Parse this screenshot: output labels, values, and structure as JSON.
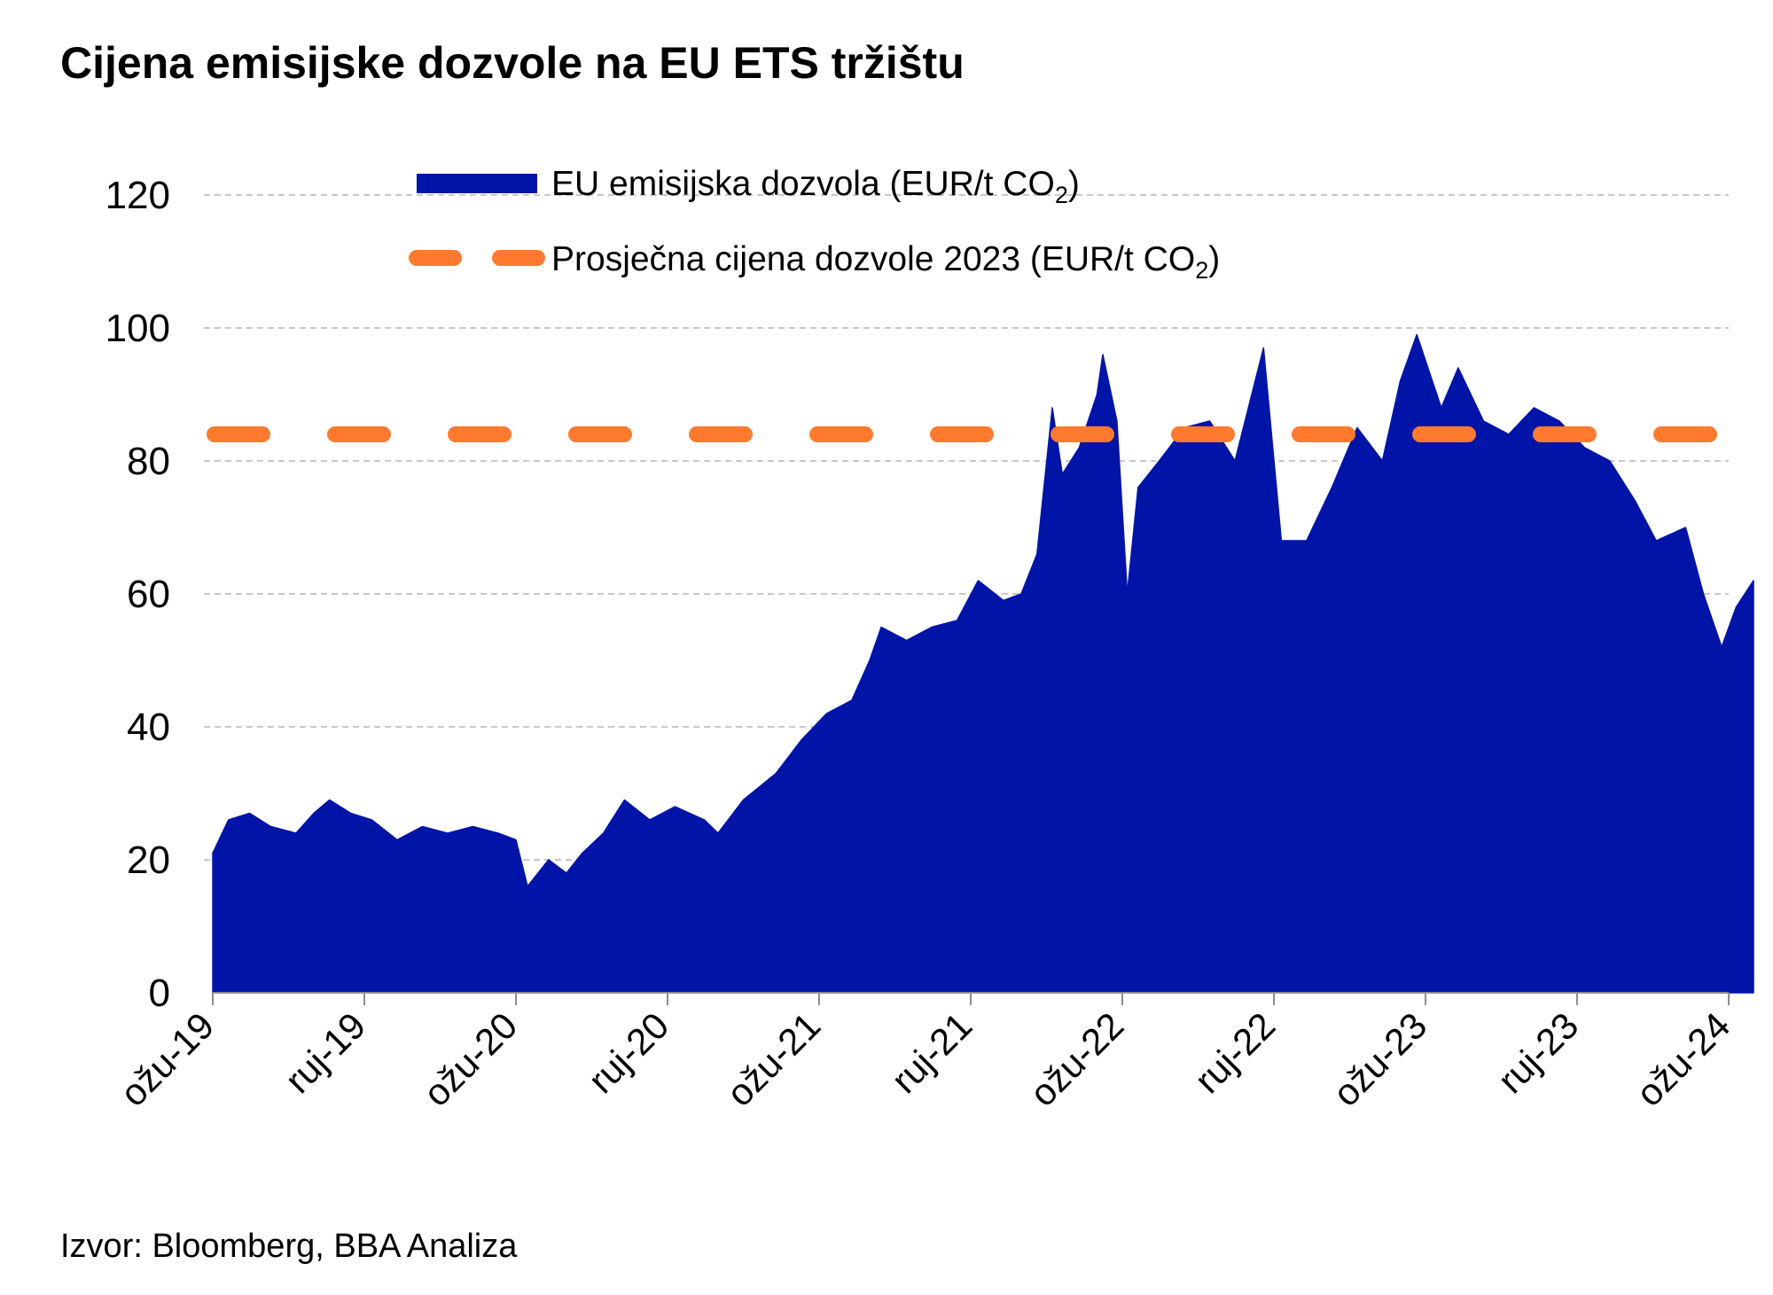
{
  "chart_data": {
    "type": "area",
    "title": "Cijena emisijske dozvole na EU ETS tržištu",
    "source": "Izvor: Bloomberg, BBA Analiza",
    "xlabel": "",
    "ylabel": "",
    "ylim": [
      0,
      120
    ],
    "y_ticks": [
      0,
      20,
      40,
      60,
      80,
      100,
      120
    ],
    "x_range": [
      "2019-03",
      "2024-03"
    ],
    "x_tick_labels": [
      "ožu-19",
      "ruj-19",
      "ožu-20",
      "ruj-20",
      "ožu-21",
      "ruj-21",
      "ožu-22",
      "ruj-22",
      "ožu-23",
      "ruj-23",
      "ožu-24"
    ],
    "grid": true,
    "legend_placement": "top",
    "colors": {
      "area": "#0014A8",
      "average": "#FF7A2E",
      "grid": "#C8C8C8"
    },
    "series": [
      {
        "name": "EU emisijska dozvola (EUR/t CO",
        "name_sub": "2",
        "name_suffix": ")",
        "kind": "area",
        "points": [
          [
            "2019-03-01",
            21
          ],
          [
            "2019-03-20",
            26
          ],
          [
            "2019-04-15",
            27
          ],
          [
            "2019-05-10",
            25
          ],
          [
            "2019-06-10",
            24
          ],
          [
            "2019-07-01",
            27
          ],
          [
            "2019-07-20",
            29
          ],
          [
            "2019-08-15",
            27
          ],
          [
            "2019-09-10",
            26
          ],
          [
            "2019-10-10",
            23
          ],
          [
            "2019-11-10",
            25
          ],
          [
            "2019-12-10",
            24
          ],
          [
            "2020-01-10",
            25
          ],
          [
            "2020-02-10",
            24
          ],
          [
            "2020-03-01",
            23
          ],
          [
            "2020-03-15",
            16
          ],
          [
            "2020-04-10",
            20
          ],
          [
            "2020-05-01",
            18
          ],
          [
            "2020-05-20",
            21
          ],
          [
            "2020-06-15",
            24
          ],
          [
            "2020-07-10",
            29
          ],
          [
            "2020-08-10",
            26
          ],
          [
            "2020-09-10",
            28
          ],
          [
            "2020-10-15",
            26
          ],
          [
            "2020-11-01",
            24
          ],
          [
            "2020-12-01",
            29
          ],
          [
            "2021-01-10",
            33
          ],
          [
            "2021-02-10",
            38
          ],
          [
            "2021-03-10",
            42
          ],
          [
            "2021-04-10",
            44
          ],
          [
            "2021-05-01",
            50
          ],
          [
            "2021-05-15",
            55
          ],
          [
            "2021-06-15",
            53
          ],
          [
            "2021-07-15",
            55
          ],
          [
            "2021-08-15",
            56
          ],
          [
            "2021-09-10",
            62
          ],
          [
            "2021-10-10",
            59
          ],
          [
            "2021-11-01",
            60
          ],
          [
            "2021-11-20",
            66
          ],
          [
            "2021-12-08",
            88
          ],
          [
            "2021-12-20",
            78
          ],
          [
            "2022-01-10",
            82
          ],
          [
            "2022-02-01",
            90
          ],
          [
            "2022-02-08",
            96
          ],
          [
            "2022-02-25",
            86
          ],
          [
            "2022-03-07",
            60
          ],
          [
            "2022-03-20",
            76
          ],
          [
            "2022-04-15",
            80
          ],
          [
            "2022-05-15",
            85
          ],
          [
            "2022-06-15",
            86
          ],
          [
            "2022-07-15",
            80
          ],
          [
            "2022-08-19",
            97
          ],
          [
            "2022-09-10",
            68
          ],
          [
            "2022-10-10",
            68
          ],
          [
            "2022-11-10",
            76
          ],
          [
            "2022-12-10",
            85
          ],
          [
            "2023-01-10",
            80
          ],
          [
            "2023-02-01",
            92
          ],
          [
            "2023-02-21",
            99
          ],
          [
            "2023-03-20",
            88
          ],
          [
            "2023-04-10",
            94
          ],
          [
            "2023-05-10",
            86
          ],
          [
            "2023-06-10",
            84
          ],
          [
            "2023-07-10",
            88
          ],
          [
            "2023-08-10",
            86
          ],
          [
            "2023-09-10",
            82
          ],
          [
            "2023-10-10",
            80
          ],
          [
            "2023-11-10",
            74
          ],
          [
            "2023-12-05",
            68
          ],
          [
            "2024-01-10",
            70
          ],
          [
            "2024-02-01",
            60
          ],
          [
            "2024-02-23",
            52
          ],
          [
            "2024-03-10",
            58
          ],
          [
            "2024-03-31",
            62
          ]
        ]
      },
      {
        "name": "Prosječna cijena dozvole 2023 (EUR/t CO",
        "name_sub": "2",
        "name_suffix": ")",
        "kind": "line-dashed",
        "value": 84
      }
    ]
  }
}
